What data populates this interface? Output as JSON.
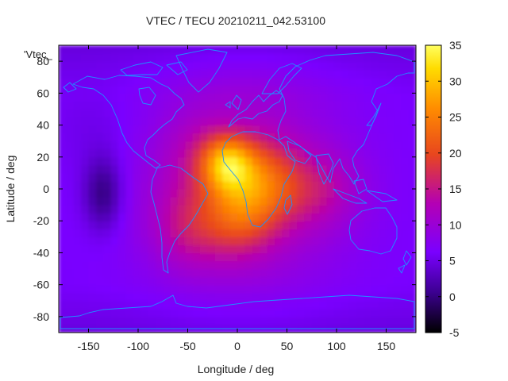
{
  "chart_data": {
    "type": "heatmap",
    "title": "VTEC / TECU 20210211_042.53100",
    "xlabel": "Longitude / deg",
    "ylabel": "Latitude / deg",
    "legend_key": "'Vtec_",
    "xlim": [
      -180,
      180
    ],
    "ylim": [
      -90,
      90
    ],
    "x_ticks": [
      -150,
      -100,
      -50,
      0,
      50,
      100,
      150
    ],
    "y_ticks": [
      -80,
      -60,
      -40,
      -20,
      0,
      20,
      40,
      60,
      80
    ],
    "colorbar": {
      "range": [
        -5,
        35
      ],
      "ticks": [
        -5,
        0,
        5,
        10,
        15,
        20,
        25,
        30,
        35
      ],
      "colormap": [
        "#000000",
        "#3c0090",
        "#7a00ff",
        "#b400b4",
        "#e8461e",
        "#ff8c00",
        "#ffdc00",
        "#ffff60"
      ]
    },
    "grid": false,
    "background_tecu": 6,
    "features": [
      {
        "name": "equatorial anomaly peak",
        "lon": -10,
        "lat": 16,
        "tecu": 32
      },
      {
        "name": "south anomaly crest",
        "lon": 0,
        "lat": -15,
        "tecu": 20
      },
      {
        "name": "Africa enhancement",
        "lon": 25,
        "lat": 5,
        "tecu": 20
      },
      {
        "name": "Indian Ocean extension",
        "lon": 80,
        "lat": 0,
        "tecu": 14
      },
      {
        "name": "South America enhancement",
        "lon": -50,
        "lat": -25,
        "tecu": 14
      },
      {
        "name": "Atlantic north enhancement",
        "lon": -40,
        "lat": 25,
        "tecu": 10
      },
      {
        "name": "Pacific depletion",
        "lon": -135,
        "lat": -3,
        "tecu": -5
      },
      {
        "name": "north Pacific depletion",
        "lon": -140,
        "lat": 35,
        "tecu": 4
      },
      {
        "name": "Arctic mild enhancement",
        "lon": 10,
        "lat": 65,
        "tecu": 8
      }
    ],
    "coastlines_color": "#1e90ff"
  }
}
